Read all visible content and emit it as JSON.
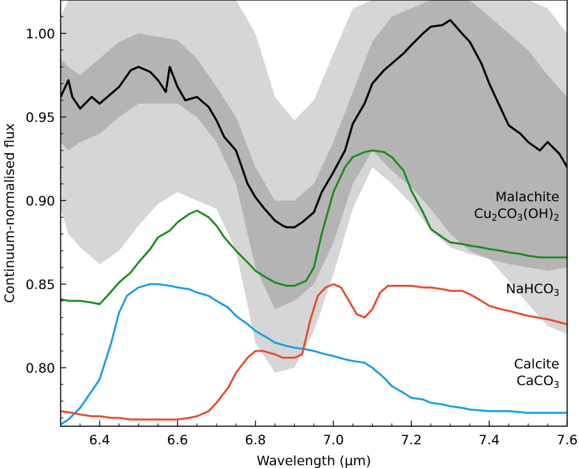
{
  "chart_data": {
    "type": "line",
    "title": "",
    "xlabel": "Wavelength (µm)",
    "ylabel": "Continuum-normalised flux",
    "xlim": [
      6.3,
      7.6
    ],
    "ylim": [
      0.765,
      1.02
    ],
    "x_ticks": [
      6.4,
      6.6,
      6.8,
      7.0,
      7.2,
      7.4,
      7.6
    ],
    "x_tick_labels": [
      "6.4",
      "6.6",
      "6.8",
      "7.0",
      "7.2",
      "7.4",
      "7.6"
    ],
    "y_ticks": [
      0.8,
      0.85,
      0.9,
      0.95,
      1.0
    ],
    "y_tick_labels": [
      "0.80",
      "0.85",
      "0.90",
      "0.95",
      "1.00"
    ],
    "grid": false,
    "legend": "none",
    "bands": [
      {
        "name": "",
        "color": "#d6d6d6",
        "x": [
          6.3,
          6.32,
          6.35,
          6.4,
          6.45,
          6.5,
          6.55,
          6.6,
          6.65,
          6.7,
          6.75,
          6.8,
          6.85,
          6.9,
          6.95,
          7.0,
          7.05,
          7.1,
          7.15,
          7.2,
          7.25,
          7.3,
          7.35,
          7.4,
          7.45,
          7.5,
          7.55,
          7.6
        ],
        "upper": [
          1.01,
          1.02,
          1.02,
          1.02,
          1.02,
          1.02,
          1.02,
          1.02,
          1.02,
          1.02,
          1.02,
          1.0,
          0.962,
          0.948,
          0.96,
          0.988,
          1.015,
          1.02,
          1.02,
          1.02,
          1.02,
          1.02,
          1.02,
          1.02,
          1.02,
          1.02,
          1.015,
          1.0
        ],
        "lower": [
          0.895,
          0.88,
          0.872,
          0.862,
          0.87,
          0.885,
          0.898,
          0.905,
          0.9,
          0.895,
          0.87,
          0.815,
          0.797,
          0.8,
          0.822,
          0.856,
          0.895,
          0.92,
          0.91,
          0.898,
          0.882,
          0.872,
          0.868,
          0.865,
          0.852,
          0.838,
          0.825,
          0.82
        ]
      },
      {
        "name": "",
        "color": "#b4b4b4",
        "x": [
          6.3,
          6.32,
          6.35,
          6.4,
          6.45,
          6.5,
          6.55,
          6.6,
          6.65,
          6.7,
          6.75,
          6.8,
          6.85,
          6.9,
          6.95,
          7.0,
          7.05,
          7.1,
          7.15,
          7.2,
          7.25,
          7.3,
          7.35,
          7.4,
          7.45,
          7.5,
          7.55,
          7.6
        ],
        "upper": [
          0.985,
          0.98,
          0.975,
          0.985,
          0.995,
          1.0,
          0.998,
          0.996,
          0.985,
          0.968,
          0.95,
          0.92,
          0.9,
          0.9,
          0.91,
          0.935,
          0.965,
          0.995,
          1.01,
          1.015,
          1.02,
          1.02,
          1.02,
          1.01,
          1.0,
          0.99,
          0.975,
          0.962
        ],
        "lower": [
          0.935,
          0.93,
          0.935,
          0.94,
          0.95,
          0.958,
          0.958,
          0.958,
          0.95,
          0.935,
          0.91,
          0.86,
          0.835,
          0.84,
          0.85,
          0.875,
          0.91,
          0.93,
          0.918,
          0.908,
          0.895,
          0.88,
          0.87,
          0.865,
          0.862,
          0.86,
          0.858,
          0.86
        ]
      }
    ],
    "series": [
      {
        "name": "",
        "color": "#000000",
        "x": [
          6.3,
          6.32,
          6.33,
          6.35,
          6.38,
          6.4,
          6.42,
          6.45,
          6.48,
          6.5,
          6.53,
          6.55,
          6.57,
          6.58,
          6.6,
          6.62,
          6.65,
          6.68,
          6.7,
          6.72,
          6.75,
          6.78,
          6.8,
          6.82,
          6.85,
          6.87,
          6.88,
          6.9,
          6.92,
          6.95,
          6.97,
          7.0,
          7.03,
          7.05,
          7.08,
          7.1,
          7.13,
          7.15,
          7.18,
          7.2,
          7.23,
          7.25,
          7.28,
          7.3,
          7.33,
          7.35,
          7.38,
          7.4,
          7.43,
          7.45,
          7.48,
          7.5,
          7.53,
          7.55,
          7.58,
          7.6
        ],
        "y": [
          0.962,
          0.972,
          0.962,
          0.955,
          0.962,
          0.958,
          0.962,
          0.968,
          0.978,
          0.98,
          0.977,
          0.972,
          0.965,
          0.98,
          0.968,
          0.96,
          0.962,
          0.956,
          0.948,
          0.938,
          0.93,
          0.91,
          0.902,
          0.896,
          0.888,
          0.885,
          0.884,
          0.884,
          0.887,
          0.893,
          0.905,
          0.917,
          0.93,
          0.946,
          0.958,
          0.97,
          0.978,
          0.982,
          0.988,
          0.993,
          1.0,
          1.004,
          1.005,
          1.008,
          1.0,
          0.995,
          0.982,
          0.97,
          0.955,
          0.945,
          0.94,
          0.935,
          0.93,
          0.935,
          0.928,
          0.92
        ]
      },
      {
        "name": "",
        "color": "#1a8c1a",
        "x": [
          6.3,
          6.32,
          6.35,
          6.38,
          6.4,
          6.42,
          6.45,
          6.48,
          6.5,
          6.53,
          6.55,
          6.58,
          6.6,
          6.63,
          6.65,
          6.68,
          6.7,
          6.72,
          6.75,
          6.78,
          6.8,
          6.82,
          6.85,
          6.88,
          6.9,
          6.93,
          6.95,
          6.97,
          7.0,
          7.03,
          7.05,
          7.08,
          7.1,
          7.13,
          7.15,
          7.18,
          7.2,
          7.23,
          7.25,
          7.28,
          7.3,
          7.33,
          7.35,
          7.38,
          7.4,
          7.43,
          7.45,
          7.48,
          7.5,
          7.53,
          7.55,
          7.58,
          7.6
        ],
        "y": [
          0.841,
          0.84,
          0.84,
          0.839,
          0.838,
          0.843,
          0.851,
          0.857,
          0.863,
          0.871,
          0.878,
          0.882,
          0.887,
          0.892,
          0.894,
          0.89,
          0.885,
          0.878,
          0.87,
          0.863,
          0.858,
          0.855,
          0.851,
          0.849,
          0.849,
          0.852,
          0.86,
          0.88,
          0.905,
          0.92,
          0.926,
          0.929,
          0.93,
          0.929,
          0.926,
          0.918,
          0.906,
          0.893,
          0.883,
          0.878,
          0.875,
          0.874,
          0.873,
          0.872,
          0.871,
          0.87,
          0.869,
          0.868,
          0.867,
          0.866,
          0.866,
          0.866,
          0.866
        ]
      },
      {
        "name": "",
        "color": "#1a9be8",
        "x": [
          6.3,
          6.32,
          6.35,
          6.38,
          6.4,
          6.43,
          6.45,
          6.47,
          6.5,
          6.53,
          6.55,
          6.58,
          6.6,
          6.63,
          6.65,
          6.68,
          6.7,
          6.73,
          6.75,
          6.78,
          6.8,
          6.83,
          6.85,
          6.88,
          6.9,
          6.93,
          6.95,
          6.98,
          7.0,
          7.03,
          7.05,
          7.08,
          7.1,
          7.13,
          7.15,
          7.18,
          7.2,
          7.23,
          7.25,
          7.28,
          7.3,
          7.33,
          7.35,
          7.4,
          7.45,
          7.5,
          7.55,
          7.6
        ],
        "y": [
          0.766,
          0.769,
          0.776,
          0.786,
          0.793,
          0.815,
          0.833,
          0.843,
          0.848,
          0.85,
          0.85,
          0.849,
          0.848,
          0.847,
          0.845,
          0.843,
          0.84,
          0.836,
          0.831,
          0.826,
          0.822,
          0.818,
          0.815,
          0.813,
          0.812,
          0.811,
          0.81,
          0.808,
          0.807,
          0.805,
          0.804,
          0.803,
          0.8,
          0.794,
          0.789,
          0.785,
          0.782,
          0.781,
          0.779,
          0.778,
          0.777,
          0.776,
          0.775,
          0.774,
          0.774,
          0.773,
          0.773,
          0.773
        ]
      },
      {
        "name": "",
        "color": "#e84a2a",
        "x": [
          6.3,
          6.33,
          6.35,
          6.38,
          6.4,
          6.43,
          6.45,
          6.48,
          6.5,
          6.53,
          6.55,
          6.58,
          6.6,
          6.63,
          6.65,
          6.68,
          6.7,
          6.73,
          6.75,
          6.78,
          6.8,
          6.82,
          6.85,
          6.87,
          6.9,
          6.92,
          6.94,
          6.96,
          6.98,
          7.0,
          7.02,
          7.04,
          7.06,
          7.08,
          7.1,
          7.12,
          7.14,
          7.16,
          7.18,
          7.2,
          7.23,
          7.25,
          7.28,
          7.3,
          7.33,
          7.35,
          7.38,
          7.4,
          7.43,
          7.45,
          7.5,
          7.55,
          7.6
        ],
        "y": [
          0.774,
          0.773,
          0.772,
          0.771,
          0.771,
          0.77,
          0.77,
          0.769,
          0.769,
          0.769,
          0.769,
          0.769,
          0.769,
          0.77,
          0.771,
          0.774,
          0.779,
          0.788,
          0.797,
          0.806,
          0.81,
          0.81,
          0.808,
          0.806,
          0.806,
          0.808,
          0.828,
          0.843,
          0.848,
          0.85,
          0.848,
          0.84,
          0.832,
          0.83,
          0.835,
          0.845,
          0.849,
          0.849,
          0.849,
          0.849,
          0.848,
          0.848,
          0.847,
          0.846,
          0.846,
          0.844,
          0.84,
          0.837,
          0.835,
          0.834,
          0.831,
          0.829,
          0.826
        ]
      }
    ],
    "annotations": [
      {
        "lines": [
          [
            {
              "t": "Malachite"
            }
          ],
          [
            {
              "t": "Cu"
            },
            {
              "t": "2",
              "sub": true
            },
            {
              "t": "CO"
            },
            {
              "t": "3",
              "sub": true
            },
            {
              "t": "(OH)"
            },
            {
              "t": "2",
              "sub": true
            }
          ]
        ],
        "x": 7.58,
        "y": 0.897
      },
      {
        "lines": [
          [
            {
              "t": "NaHCO"
            },
            {
              "t": "3",
              "sub": true
            }
          ]
        ],
        "x": 7.58,
        "y": 0.847
      },
      {
        "lines": [
          [
            {
              "t": "Calcite"
            }
          ],
          [
            {
              "t": "CaCO"
            },
            {
              "t": "3",
              "sub": true
            }
          ]
        ],
        "x": 7.58,
        "y": 0.797
      }
    ]
  }
}
